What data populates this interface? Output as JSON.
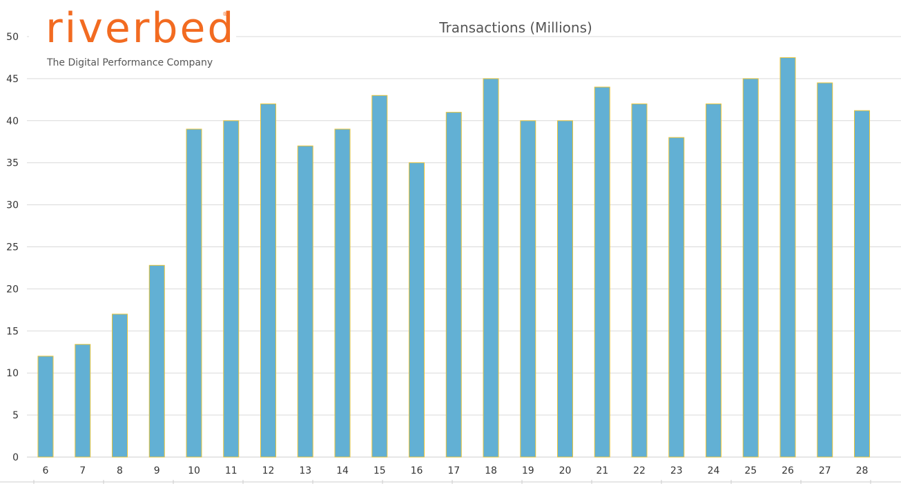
{
  "logo": {
    "wordmark": "riverbed",
    "registered": "®",
    "tagline": "The Digital Performance Company"
  },
  "chart_data": {
    "type": "bar",
    "title": "Transactions (Millions)",
    "xlabel": "",
    "ylabel": "",
    "categories": [
      "6",
      "7",
      "8",
      "9",
      "10",
      "11",
      "12",
      "13",
      "14",
      "15",
      "16",
      "17",
      "18",
      "19",
      "20",
      "21",
      "22",
      "23",
      "24",
      "25",
      "26",
      "27",
      "28"
    ],
    "values": [
      12,
      13.4,
      17,
      22.8,
      39,
      40,
      42,
      37,
      39,
      43,
      35,
      41,
      45,
      40,
      40,
      44,
      42,
      38,
      42,
      45,
      47.5,
      44.5,
      41.2
    ],
    "ylim": [
      0,
      50
    ],
    "yticks": [
      0,
      5,
      10,
      15,
      20,
      25,
      30,
      35,
      40,
      45,
      50
    ],
    "grid": true,
    "legend": "none",
    "colors": {
      "bar_fill": "#62b0d4",
      "bar_stroke": "#e8c43a",
      "grid": "#d9d9d9",
      "axis": "#cccccc"
    }
  }
}
